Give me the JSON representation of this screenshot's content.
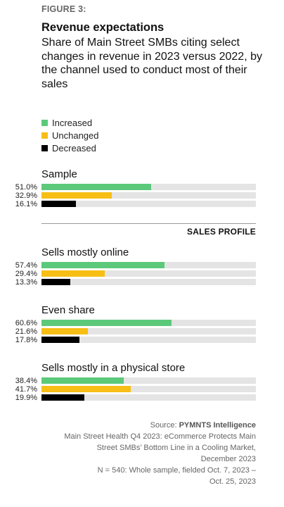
{
  "figure_label": "FIGURE 3:",
  "chart_data": {
    "type": "bar",
    "title": "Revenue expectations",
    "subtitle": "Share of Main Street SMBs citing select changes in revenue in 2023 versus 2022, by the channel used to conduct most of their sales",
    "orientation": "horizontal",
    "xlim": [
      0,
      100
    ],
    "unit": "%",
    "legend": [
      {
        "name": "Increased",
        "color": "#5cc97a"
      },
      {
        "name": "Unchanged",
        "color": "#f7be15"
      },
      {
        "name": "Decreased",
        "color": "#000000"
      }
    ],
    "section_header": "SALES PROFILE",
    "groups": [
      {
        "name": "Sample",
        "values": [
          51.0,
          32.9,
          16.1
        ],
        "labels": [
          "51.0%",
          "32.9%",
          "16.1%"
        ]
      },
      {
        "name": "Sells mostly online",
        "values": [
          57.4,
          29.4,
          13.3
        ],
        "labels": [
          "57.4%",
          "29.4%",
          "13.3%"
        ]
      },
      {
        "name": "Even share",
        "values": [
          60.6,
          21.6,
          17.8
        ],
        "labels": [
          "60.6%",
          "21.6%",
          "17.8%"
        ]
      },
      {
        "name": "Sells mostly in a physical store",
        "values": [
          38.4,
          41.7,
          19.9
        ],
        "labels": [
          "38.4%",
          "41.7%",
          "19.9%"
        ]
      }
    ]
  },
  "footer": {
    "source_prefix": "Source: ",
    "source_name": "PYMNTS Intelligence",
    "lines": [
      "Main Street Health Q4 2023: eCommerce Protects Main",
      "Street SMBs’ Bottom Line in a Cooling Market,",
      "December 2023",
      "N = 540: Whole sample, fielded Oct. 7, 2023 –",
      "Oct. 25, 2023"
    ]
  }
}
